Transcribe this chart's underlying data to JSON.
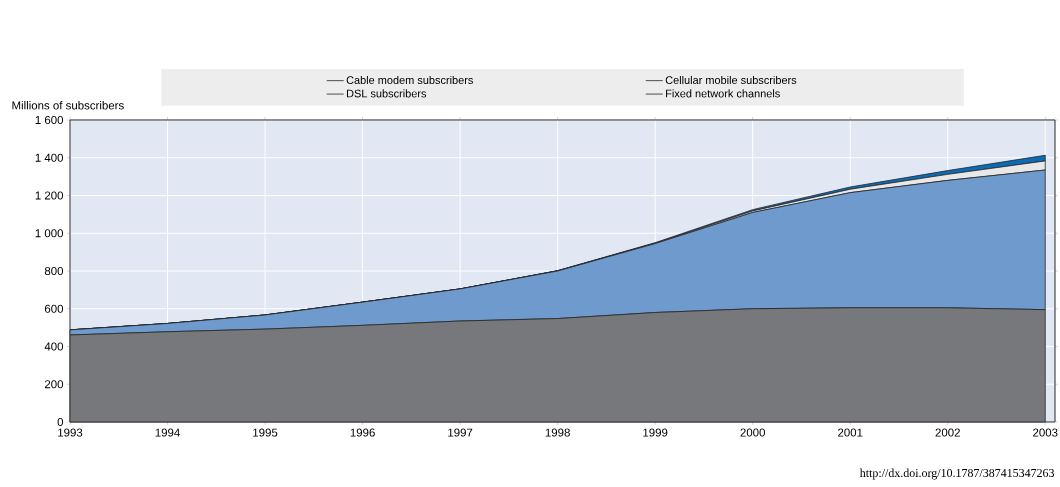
{
  "chart_data": {
    "type": "area",
    "stacked": true,
    "ylabel": "Millions of subscribers",
    "x": [
      1993,
      1994,
      1995,
      1996,
      1997,
      1998,
      1999,
      2000,
      2001,
      2002,
      2003
    ],
    "xlim": [
      1993,
      2003.1
    ],
    "xticks": [
      1993,
      1994,
      1995,
      1996,
      1997,
      1998,
      1999,
      2000,
      2001,
      2002,
      2003
    ],
    "ylim": [
      0,
      1600
    ],
    "yticks": [
      0,
      200,
      400,
      600,
      800,
      {
        "value": 1000,
        "label": "1 000"
      },
      {
        "value": 1200,
        "label": "1 200"
      },
      {
        "value": 1400,
        "label": "1 400"
      },
      {
        "value": 1600,
        "label": "1 600"
      }
    ],
    "grid": true,
    "legend": "top",
    "series": [
      {
        "name": "Fixed network channels",
        "color": "#77787c",
        "values": [
          461,
          478,
          492,
          512,
          535,
          548,
          580,
          600,
          605,
          605,
          595
        ]
      },
      {
        "name": "Cellular mobile subscribers",
        "color": "#6e9acd",
        "values": [
          27,
          44,
          75,
          123,
          170,
          252,
          365,
          510,
          610,
          675,
          740
        ]
      },
      {
        "name": "DSL subscribers",
        "color": "#e8e8e8",
        "values": [
          0,
          0,
          0,
          0,
          0,
          1,
          2,
          8,
          18,
          32,
          48
        ]
      },
      {
        "name": "Cable modem subscribers",
        "color": "#0a6cb4",
        "values": [
          0,
          0,
          0,
          0,
          0,
          1,
          3,
          7,
          12,
          20,
          30
        ]
      }
    ],
    "annotations": [
      "http://dx.doi.org/10.1787/387415347263"
    ]
  }
}
